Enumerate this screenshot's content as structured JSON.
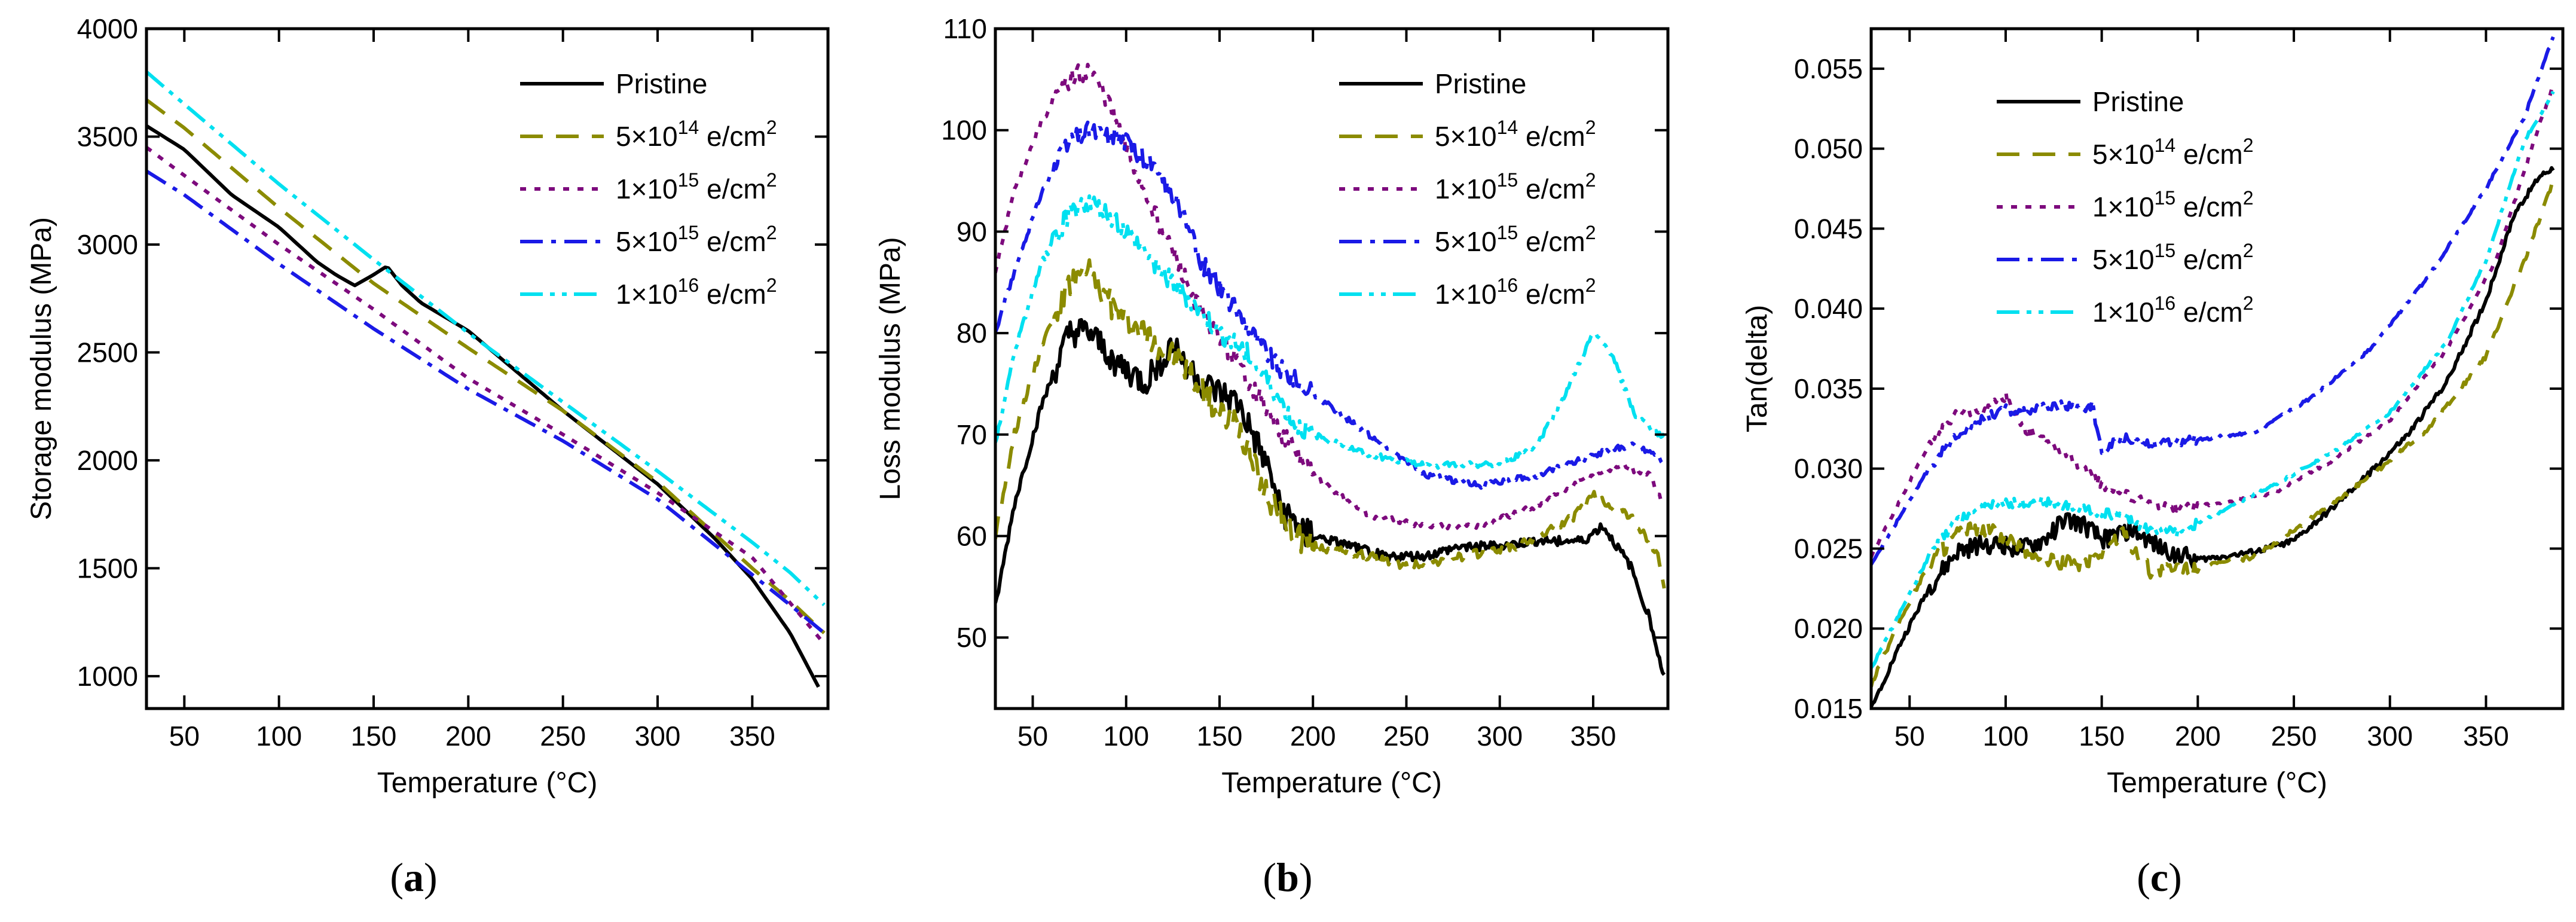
{
  "figure": {
    "panels": [
      {
        "label_open": "(",
        "label_letter": "a",
        "label_close": ")"
      },
      {
        "label_open": "(",
        "label_letter": "b",
        "label_close": ")"
      },
      {
        "label_open": "(",
        "label_letter": "c",
        "label_close": ")"
      }
    ]
  },
  "chart_data": [
    {
      "type": "line",
      "title": "",
      "xlabel": "Temperature (°C)",
      "ylabel": "Storage modulus (MPa)",
      "xlim": [
        30,
        390
      ],
      "ylim": [
        850,
        4000
      ],
      "xticks": [
        50,
        100,
        150,
        200,
        250,
        300,
        350
      ],
      "yticks": [
        1000,
        1500,
        2000,
        2500,
        3000,
        3500,
        4000
      ],
      "ytick_labels": [
        "1000",
        "1500",
        "2000",
        "2500",
        "3000",
        "3500",
        "4000"
      ],
      "grid": false,
      "legend": "top-right",
      "series": [
        {
          "name": "Pristine",
          "sup": "",
          "unit": "",
          "color": "#000000",
          "dash": "solid",
          "noise": 0,
          "x": [
            30,
            50,
            75,
            100,
            120,
            130,
            140,
            150,
            157,
            165,
            175,
            200,
            250,
            300,
            330,
            350,
            370,
            385
          ],
          "y": [
            3550,
            3440,
            3230,
            3080,
            2920,
            2860,
            2810,
            2860,
            2900,
            2810,
            2730,
            2600,
            2230,
            1890,
            1640,
            1450,
            1200,
            950
          ]
        },
        {
          "name": "5×10",
          "sup": "14",
          "unit": " e/cm",
          "color": "#8b8b00",
          "dash": "dashed",
          "noise": 0,
          "x": [
            30,
            50,
            100,
            150,
            200,
            250,
            300,
            350,
            370,
            388
          ],
          "y": [
            3670,
            3540,
            3170,
            2820,
            2520,
            2230,
            1900,
            1500,
            1350,
            1200
          ]
        },
        {
          "name": "1×10",
          "sup": "15",
          "unit": " e/cm",
          "color": "#7d0a7d",
          "dash": "dotted",
          "noise": 0,
          "x": [
            30,
            50,
            100,
            150,
            200,
            250,
            300,
            350,
            388
          ],
          "y": [
            3450,
            3320,
            3000,
            2700,
            2380,
            2120,
            1850,
            1550,
            1150
          ]
        },
        {
          "name": "5×10",
          "sup": "15",
          "unit": " e/cm",
          "color": "#1a1ae6",
          "dash": "dashdot",
          "noise": 0,
          "x": [
            30,
            50,
            100,
            150,
            200,
            250,
            300,
            350,
            370,
            388
          ],
          "y": [
            3340,
            3230,
            2910,
            2610,
            2330,
            2090,
            1820,
            1470,
            1330,
            1200
          ]
        },
        {
          "name": "1×10",
          "sup": "16",
          "unit": " e/cm",
          "color": "#00e0f0",
          "dash": "dashdotdot",
          "noise": 0,
          "x": [
            30,
            50,
            100,
            150,
            200,
            250,
            300,
            350,
            370,
            388
          ],
          "y": [
            3800,
            3650,
            3280,
            2930,
            2590,
            2270,
            1950,
            1620,
            1480,
            1330
          ]
        }
      ],
      "sup_suffix": "2"
    },
    {
      "type": "line",
      "title": "",
      "xlabel": "Temperature (°C)",
      "ylabel": "Loss modulus (MPa)",
      "xlim": [
        30,
        390
      ],
      "ylim": [
        43,
        110
      ],
      "xticks": [
        50,
        100,
        150,
        200,
        250,
        300,
        350
      ],
      "yticks": [
        50,
        60,
        70,
        80,
        90,
        100,
        110
      ],
      "ytick_labels": [
        "50",
        "60",
        "70",
        "80",
        "90",
        "100",
        "110"
      ],
      "grid": false,
      "legend": "top-right",
      "series": [
        {
          "name": "Pristine",
          "sup": "",
          "unit": "",
          "color": "#000000",
          "dash": "solid",
          "noise": 1.5,
          "x": [
            30,
            40,
            55,
            70,
            80,
            95,
            110,
            125,
            140,
            160,
            175,
            185,
            200,
            220,
            240,
            260,
            280,
            300,
            320,
            345,
            355,
            370,
            380,
            388
          ],
          "y": [
            53,
            63,
            73,
            80,
            80,
            77,
            75,
            79,
            75,
            73,
            67,
            62,
            60,
            59,
            58,
            58,
            59,
            59,
            59.5,
            59.5,
            61,
            57,
            52,
            46
          ]
        },
        {
          "name": "5×10",
          "sup": "14",
          "unit": " e/cm",
          "color": "#8b8b00",
          "dash": "dashed",
          "noise": 1.5,
          "x": [
            30,
            40,
            55,
            70,
            80,
            95,
            110,
            130,
            150,
            160,
            170,
            185,
            200,
            230,
            250,
            280,
            310,
            340,
            350,
            370,
            385,
            388
          ],
          "y": [
            60,
            70,
            79,
            85,
            86,
            82,
            80,
            77,
            72,
            71,
            66,
            61,
            59,
            58,
            57,
            58,
            59,
            62,
            64,
            62,
            58,
            55
          ]
        },
        {
          "name": "1×10",
          "sup": "15",
          "unit": " e/cm",
          "color": "#7d0a7d",
          "dash": "dotted",
          "noise": 1,
          "x": [
            30,
            40,
            55,
            70,
            80,
            90,
            100,
            110,
            125,
            140,
            160,
            180,
            200,
            230,
            260,
            290,
            320,
            350,
            365,
            380,
            388
          ],
          "y": [
            86,
            94,
            101,
            105,
            106,
            103,
            98,
            94,
            88,
            82,
            77,
            71,
            66,
            62,
            61,
            61,
            63,
            66,
            67,
            66,
            63
          ]
        },
        {
          "name": "5×10",
          "sup": "15",
          "unit": " e/cm",
          "color": "#1a1ae6",
          "dash": "dashdot",
          "noise": 1,
          "x": [
            30,
            40,
            55,
            70,
            80,
            100,
            110,
            120,
            130,
            140,
            160,
            180,
            200,
            230,
            260,
            290,
            320,
            350,
            370,
            385,
            388
          ],
          "y": [
            80,
            86,
            94,
            99,
            100,
            99,
            97,
            95,
            92,
            87,
            82,
            77,
            74,
            70,
            66,
            65,
            66,
            68,
            69,
            68,
            67
          ]
        },
        {
          "name": "1×10",
          "sup": "16",
          "unit": " e/cm",
          "color": "#00e0f0",
          "dash": "dashdotdot",
          "noise": 1,
          "x": [
            30,
            40,
            55,
            70,
            80,
            95,
            110,
            130,
            150,
            165,
            180,
            190,
            200,
            230,
            260,
            280,
            300,
            320,
            335,
            350,
            360,
            372,
            385,
            388
          ],
          "y": [
            69,
            78,
            87,
            92,
            93,
            91,
            88,
            84,
            80,
            78,
            74,
            71,
            70,
            68,
            67,
            67,
            67,
            69,
            74,
            80,
            78,
            72,
            70,
            70
          ]
        }
      ],
      "sup_suffix": "2"
    },
    {
      "type": "line",
      "title": "",
      "xlabel": "Temperature (°C)",
      "ylabel": "Tan(delta)",
      "xlim": [
        30,
        390
      ],
      "ylim": [
        0.015,
        0.0575
      ],
      "xticks": [
        50,
        100,
        150,
        200,
        250,
        300,
        350
      ],
      "yticks": [
        0.015,
        0.02,
        0.025,
        0.03,
        0.035,
        0.04,
        0.045,
        0.05,
        0.055
      ],
      "ytick_labels": [
        "0.015",
        "0.020",
        "0.025",
        "0.030",
        "0.035",
        "0.040",
        "0.045",
        "0.050",
        "0.055"
      ],
      "grid": false,
      "legend": "top-left",
      "series": [
        {
          "name": "Pristine",
          "sup": "",
          "unit": "",
          "color": "#000000",
          "dash": "solid",
          "noise": 0.0006,
          "x": [
            30,
            45,
            60,
            75,
            90,
            100,
            110,
            120,
            130,
            140,
            150,
            165,
            180,
            200,
            230,
            250,
            270,
            290,
            310,
            330,
            350,
            365,
            378,
            385
          ],
          "y": [
            0.015,
            0.019,
            0.0225,
            0.0248,
            0.0253,
            0.0252,
            0.025,
            0.0255,
            0.0268,
            0.0265,
            0.0255,
            0.0262,
            0.025,
            0.0243,
            0.0248,
            0.0255,
            0.0275,
            0.0298,
            0.0322,
            0.0355,
            0.0405,
            0.046,
            0.0483,
            0.0488
          ]
        },
        {
          "name": "5×10",
          "sup": "14",
          "unit": " e/cm",
          "color": "#8b8b00",
          "dash": "dashed",
          "noise": 0.0005,
          "x": [
            30,
            45,
            60,
            75,
            90,
            100,
            120,
            140,
            150,
            160,
            175,
            200,
            230,
            260,
            290,
            320,
            350,
            370,
            385
          ],
          "y": [
            0.0165,
            0.0205,
            0.024,
            0.026,
            0.0262,
            0.0256,
            0.0243,
            0.024,
            0.0248,
            0.026,
            0.0236,
            0.0238,
            0.0245,
            0.027,
            0.0295,
            0.0325,
            0.037,
            0.043,
            0.048
          ]
        },
        {
          "name": "1×10",
          "sup": "15",
          "unit": " e/cm",
          "color": "#7d0a7d",
          "dash": "dotted",
          "noise": 0.0003,
          "x": [
            30,
            45,
            60,
            75,
            90,
            100,
            110,
            130,
            150,
            170,
            190,
            210,
            240,
            270,
            300,
            330,
            355,
            375,
            385
          ],
          "y": [
            0.0245,
            0.028,
            0.0315,
            0.0335,
            0.0337,
            0.0345,
            0.0325,
            0.031,
            0.029,
            0.028,
            0.0275,
            0.0278,
            0.0285,
            0.0305,
            0.033,
            0.0375,
            0.043,
            0.0505,
            0.054
          ]
        },
        {
          "name": "5×10",
          "sup": "15",
          "unit": " e/cm",
          "color": "#1a1ae6",
          "dash": "dashdot",
          "noise": 0.0003,
          "x": [
            30,
            45,
            60,
            75,
            90,
            100,
            110,
            120,
            130,
            140,
            145,
            150,
            160,
            180,
            200,
            230,
            260,
            290,
            320,
            350,
            370,
            385
          ],
          "y": [
            0.024,
            0.027,
            0.03,
            0.0322,
            0.0332,
            0.0337,
            0.0335,
            0.0338,
            0.034,
            0.0337,
            0.034,
            0.031,
            0.032,
            0.0315,
            0.0318,
            0.0323,
            0.0345,
            0.0375,
            0.042,
            0.0475,
            0.052,
            0.057
          ]
        },
        {
          "name": "1×10",
          "sup": "16",
          "unit": " e/cm",
          "color": "#00e0f0",
          "dash": "dashdotdot",
          "noise": 0.0003,
          "x": [
            30,
            45,
            60,
            75,
            90,
            100,
            120,
            140,
            160,
            175,
            190,
            210,
            240,
            270,
            300,
            330,
            350,
            370,
            385
          ],
          "y": [
            0.0175,
            0.021,
            0.0245,
            0.0268,
            0.0277,
            0.0278,
            0.028,
            0.0275,
            0.027,
            0.0262,
            0.026,
            0.0272,
            0.029,
            0.031,
            0.0335,
            0.038,
            0.043,
            0.0505,
            0.0535
          ]
        }
      ],
      "sup_suffix": "2"
    }
  ]
}
